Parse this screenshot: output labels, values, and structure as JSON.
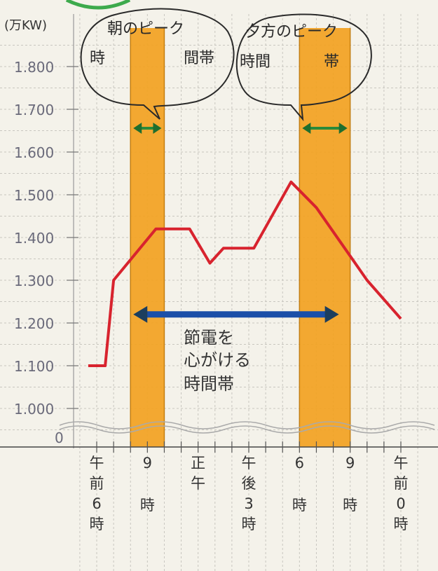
{
  "chart_data": {
    "type": "line",
    "unit_label": "(万KW)",
    "y_ticks": [
      "1.800",
      "1.700",
      "1.600",
      "1.500",
      "1.400",
      "1.300",
      "1.200",
      "1.100",
      "1.000"
    ],
    "y_tick_values": [
      1800,
      1700,
      1600,
      1500,
      1400,
      1300,
      1200,
      1100,
      1000
    ],
    "y_zero_label": "0",
    "ylim": [
      1000,
      1800
    ],
    "x_ticks": [
      {
        "hour": 6,
        "text": "午前6時"
      },
      {
        "hour": 9,
        "text": "9時"
      },
      {
        "hour": 12,
        "text": "正午"
      },
      {
        "hour": 15,
        "text": "午後3時"
      },
      {
        "hour": 18,
        "text": "6時"
      },
      {
        "hour": 21,
        "text": "9時"
      },
      {
        "hour": 24,
        "text": "午前0時"
      }
    ],
    "xlim": [
      4.5,
      25
    ],
    "series": [
      {
        "color": "#d8232e",
        "points": [
          {
            "x": 5.5,
            "y": 1100
          },
          {
            "x": 6.5,
            "y": 1100
          },
          {
            "x": 7.0,
            "y": 1300
          },
          {
            "x": 9.5,
            "y": 1420
          },
          {
            "x": 10.5,
            "y": 1420
          },
          {
            "x": 11.5,
            "y": 1420
          },
          {
            "x": 12.7,
            "y": 1340
          },
          {
            "x": 13.5,
            "y": 1375
          },
          {
            "x": 14.5,
            "y": 1375
          },
          {
            "x": 15.3,
            "y": 1375
          },
          {
            "x": 17.5,
            "y": 1530
          },
          {
            "x": 19.0,
            "y": 1470
          },
          {
            "x": 22.0,
            "y": 1300
          },
          {
            "x": 24.0,
            "y": 1210
          }
        ]
      }
    ],
    "bands": [
      {
        "from": 8.0,
        "to": 10.0,
        "color": "#f2a221"
      },
      {
        "from": 18.0,
        "to": 21.0,
        "color": "#f2a221"
      }
    ],
    "annotations": {
      "morning_peak": "朝のピーク時間帯",
      "evening_peak": "夕方のピーク時間帯",
      "saving_period": "節電を心がける時間帯",
      "saving_arrow_from": 8.0,
      "saving_arrow_to": 20.5,
      "saving_arrow_value": 1220,
      "saving_arrow_color": "#1b4fa8"
    },
    "grid": true
  }
}
